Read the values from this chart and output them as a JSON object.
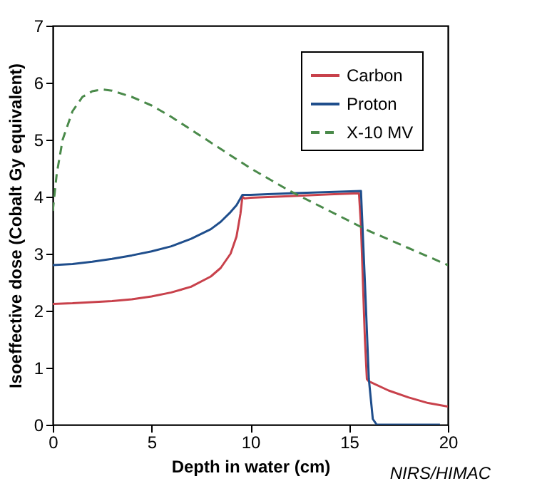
{
  "chart_data": {
    "type": "line",
    "xlabel": "Depth in water (cm)",
    "ylabel": "Isoeffective dose (Cobalt Gy equivalent)",
    "annotations": [
      "NIRS/HIMAC"
    ],
    "xlim": [
      0,
      20
    ],
    "xticks": [
      0,
      5,
      10,
      15,
      20
    ],
    "ylim": [
      0,
      7
    ],
    "yticks": [
      0,
      1,
      2,
      3,
      4,
      5,
      6,
      7
    ],
    "grid": false,
    "legend": "top right",
    "marker": "none",
    "series": [
      {
        "name": "Carbon",
        "color": "#c8414b",
        "line_style": "solid",
        "x": [
          0,
          1,
          2,
          3,
          4,
          5,
          6,
          7,
          8,
          8.5,
          9,
          9.3,
          9.5,
          9.6,
          9.7,
          10,
          12,
          14,
          15.5,
          15.6,
          15.8,
          15.9,
          16,
          17,
          18,
          19,
          20
        ],
        "values": [
          2.12,
          2.13,
          2.15,
          2.17,
          2.2,
          2.25,
          2.32,
          2.42,
          2.6,
          2.75,
          3.0,
          3.3,
          3.7,
          4.0,
          3.97,
          3.98,
          4.01,
          4.04,
          4.06,
          3.5,
          1.5,
          0.8,
          0.76,
          0.6,
          0.48,
          0.38,
          0.32
        ]
      },
      {
        "name": "Proton",
        "color": "#1f4e8c",
        "line_style": "solid",
        "x": [
          0,
          1,
          2,
          3,
          4,
          5,
          6,
          7,
          8,
          8.5,
          9,
          9.3,
          9.6,
          10,
          12,
          14,
          15.6,
          15.8,
          16,
          16.2,
          16.4,
          17,
          18,
          19,
          19.6
        ],
        "values": [
          2.8,
          2.82,
          2.86,
          2.91,
          2.97,
          3.04,
          3.13,
          3.26,
          3.43,
          3.56,
          3.73,
          3.85,
          4.03,
          4.03,
          4.06,
          4.08,
          4.1,
          2.5,
          0.8,
          0.1,
          0,
          0,
          0,
          0,
          0
        ]
      },
      {
        "name": "X-10 MV",
        "color": "#4a8a4a",
        "line_style": "dashed",
        "x": [
          0,
          0.2,
          0.5,
          1,
          1.5,
          2,
          2.5,
          3,
          4,
          5,
          6,
          8,
          10,
          12,
          14,
          16,
          18,
          20
        ],
        "values": [
          3.75,
          4.4,
          5.0,
          5.5,
          5.75,
          5.85,
          5.88,
          5.86,
          5.75,
          5.6,
          5.4,
          4.95,
          4.5,
          4.1,
          3.75,
          3.4,
          3.1,
          2.8
        ]
      }
    ]
  }
}
